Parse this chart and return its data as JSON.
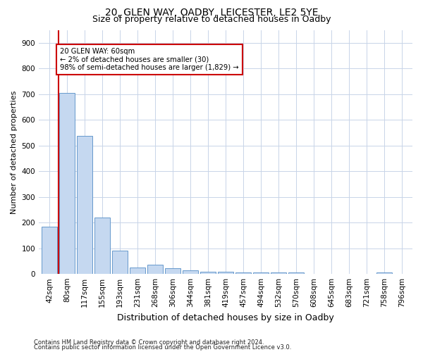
{
  "title1": "20, GLEN WAY, OADBY, LEICESTER, LE2 5YE",
  "title2": "Size of property relative to detached houses in Oadby",
  "xlabel": "Distribution of detached houses by size in Oadby",
  "ylabel": "Number of detached properties",
  "categories": [
    "42sqm",
    "80sqm",
    "117sqm",
    "155sqm",
    "193sqm",
    "231sqm",
    "268sqm",
    "306sqm",
    "344sqm",
    "381sqm",
    "419sqm",
    "457sqm",
    "494sqm",
    "532sqm",
    "570sqm",
    "608sqm",
    "645sqm",
    "683sqm",
    "721sqm",
    "758sqm",
    "796sqm"
  ],
  "values": [
    185,
    705,
    537,
    220,
    90,
    25,
    35,
    22,
    13,
    10,
    10,
    7,
    5,
    5,
    5,
    0,
    0,
    0,
    0,
    5,
    0
  ],
  "bar_color": "#c5d8f0",
  "bar_edge_color": "#6699cc",
  "highlight_line_color": "#cc0000",
  "annotation_text": "20 GLEN WAY: 60sqm\n← 2% of detached houses are smaller (30)\n98% of semi-detached houses are larger (1,829) →",
  "annotation_box_color": "#ffffff",
  "annotation_box_edge": "#cc0000",
  "ylim": [
    0,
    950
  ],
  "yticks": [
    0,
    100,
    200,
    300,
    400,
    500,
    600,
    700,
    800,
    900
  ],
  "footer1": "Contains HM Land Registry data © Crown copyright and database right 2024.",
  "footer2": "Contains public sector information licensed under the Open Government Licence v3.0.",
  "bg_color": "#ffffff",
  "grid_color": "#c8d4e8",
  "title1_fontsize": 10,
  "title2_fontsize": 9,
  "ylabel_fontsize": 8,
  "xlabel_fontsize": 9,
  "tick_fontsize": 7.5,
  "footer_fontsize": 6.0
}
